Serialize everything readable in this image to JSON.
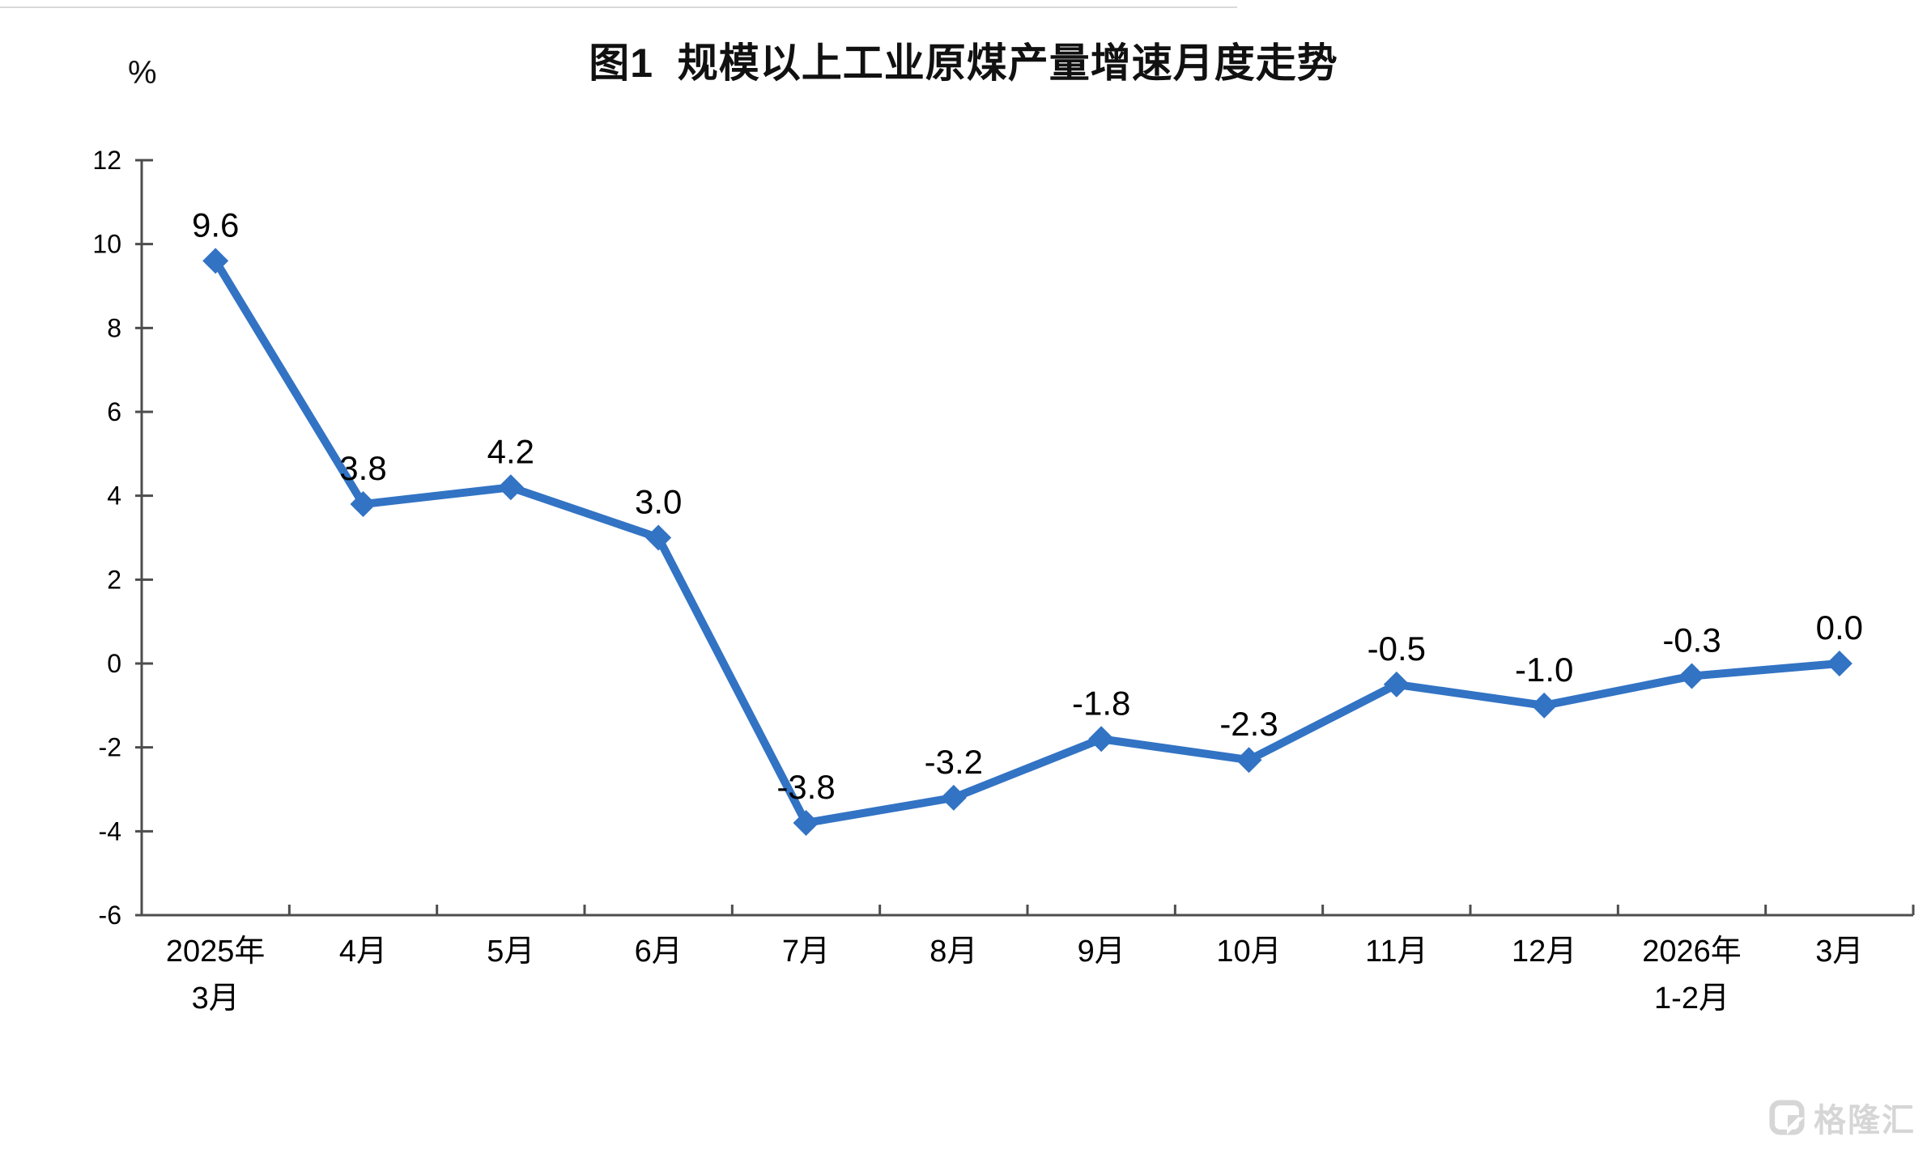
{
  "title": "图1  规模以上工业原煤产量增速月度走势",
  "unit_label": "%",
  "watermark": {
    "text": "格隆汇",
    "logo": "gelonghui-g-logo"
  },
  "colors": {
    "line": "#3273C4",
    "marker": "#3273C4",
    "axis": "#4d4d4d",
    "label_text": "#000000",
    "watermark": "#d6d6d6",
    "background": "#ffffff"
  },
  "chart_data": {
    "type": "line",
    "title": "图1 规模以上工业原煤产量增速月度走势",
    "unit": "%",
    "categories": [
      [
        "2025年",
        "3月"
      ],
      [
        "4月"
      ],
      [
        "5月"
      ],
      [
        "6月"
      ],
      [
        "7月"
      ],
      [
        "8月"
      ],
      [
        "9月"
      ],
      [
        "10月"
      ],
      [
        "11月"
      ],
      [
        "12月"
      ],
      [
        "2026年",
        "1-2月"
      ],
      [
        "3月"
      ]
    ],
    "values": [
      9.6,
      3.8,
      4.2,
      3.0,
      -3.8,
      -3.2,
      -1.8,
      -2.3,
      -0.5,
      -1.0,
      -0.3,
      0.0
    ],
    "point_labels": [
      "9.6",
      "3.8",
      "4.2",
      "3.0",
      "-3.8",
      "-3.2",
      "-1.8",
      "-2.3",
      "-0.5",
      "-1.0",
      "-0.3",
      "0.0"
    ],
    "y_ticks": [
      12,
      10,
      8,
      6,
      4,
      2,
      0,
      -2,
      -4,
      -6
    ],
    "ylim": [
      -6,
      12
    ],
    "ylabel": "%",
    "xlabel": "",
    "grid": false,
    "legend": false,
    "marker_shape": "diamond"
  }
}
